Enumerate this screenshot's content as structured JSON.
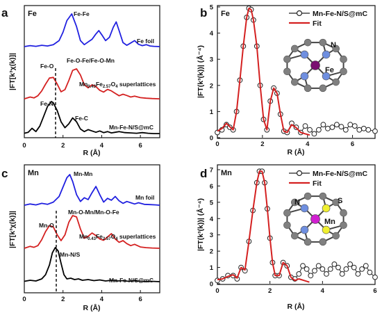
{
  "chart_data": [
    {
      "type": "line",
      "panel": "a",
      "element": "Fe",
      "xlabel": "R (Å)",
      "ylabel": "|FT[k³χ(k)]|",
      "xlim": [
        0,
        7
      ],
      "xticks": [
        "0",
        "2",
        "4",
        "6"
      ],
      "series": [
        {
          "name": "Fe foil",
          "color": "#2020e0",
          "x": [
            0,
            0.3,
            0.6,
            0.9,
            1.2,
            1.5,
            1.8,
            2.0,
            2.2,
            2.45,
            2.7,
            2.9,
            3.1,
            3.3,
            3.5,
            3.7,
            3.85,
            4.0,
            4.2,
            4.4,
            4.6,
            4.75,
            4.9,
            5.1,
            5.3,
            5.5,
            5.7,
            5.9,
            6.1,
            6.3,
            6.5,
            6.7,
            7.0
          ],
          "y": [
            0.02,
            0.05,
            0.03,
            0.06,
            0.04,
            0.08,
            0.2,
            0.45,
            0.8,
            1.0,
            0.62,
            0.2,
            0.08,
            0.16,
            0.24,
            0.4,
            0.5,
            0.38,
            0.2,
            0.3,
            0.6,
            0.76,
            0.5,
            0.14,
            0.06,
            0.13,
            0.2,
            0.09,
            0.05,
            0.08,
            0.04,
            0.03,
            0.02
          ]
        },
        {
          "name": "Mn0.43Fe2.57O4 superlattices",
          "color": "#d42020",
          "x": [
            0,
            0.3,
            0.5,
            0.7,
            0.9,
            1.1,
            1.3,
            1.5,
            1.7,
            1.9,
            2.1,
            2.3,
            2.5,
            2.7,
            2.9,
            3.1,
            3.3,
            3.5,
            3.7,
            3.9,
            4.1,
            4.3,
            4.5,
            4.7,
            4.9,
            5.1,
            5.3,
            5.5,
            5.7,
            6.0,
            6.3,
            6.6,
            7.0
          ],
          "y": [
            0.02,
            0.08,
            0.05,
            0.12,
            0.28,
            0.5,
            0.7,
            0.72,
            0.5,
            0.25,
            0.32,
            0.62,
            0.95,
            1.0,
            0.8,
            0.48,
            0.38,
            0.48,
            0.42,
            0.3,
            0.24,
            0.33,
            0.28,
            0.2,
            0.12,
            0.17,
            0.13,
            0.08,
            0.11,
            0.06,
            0.04,
            0.03,
            0.02
          ]
        },
        {
          "name": "Mn-Fe-N/S@mC",
          "color": "#000000",
          "x": [
            0,
            0.2,
            0.4,
            0.6,
            0.8,
            1.0,
            1.2,
            1.4,
            1.5,
            1.7,
            1.9,
            2.1,
            2.3,
            2.5,
            2.7,
            2.9,
            3.1,
            3.3,
            3.5,
            3.7,
            3.9,
            4.1,
            4.3,
            4.5,
            4.7,
            4.9,
            5.2,
            5.5,
            5.8,
            6.1,
            6.4,
            6.7,
            7.0
          ],
          "y": [
            0.03,
            0.06,
            0.18,
            0.08,
            0.25,
            0.55,
            0.85,
            1.0,
            0.96,
            0.72,
            0.38,
            0.2,
            0.32,
            0.5,
            0.38,
            0.16,
            0.08,
            0.14,
            0.1,
            0.06,
            0.1,
            0.05,
            0.08,
            0.04,
            0.06,
            0.08,
            0.05,
            0.04,
            0.03,
            0.05,
            0.03,
            0.02,
            0.02
          ]
        }
      ],
      "annotations": [
        "Fe-Fe",
        "Fe-O",
        "Fe-O-Fe/Fe-O-Mn",
        "Fe-N",
        "Fe-C"
      ]
    },
    {
      "type": "line",
      "panel": "b",
      "element": "Fe",
      "xlabel": "R (Å)",
      "ylabel": "|FT(k³(k))| (Å⁻⁴)",
      "xlim": [
        0,
        7
      ],
      "ylim": [
        0,
        5
      ],
      "xticks": [
        "0",
        "2",
        "4",
        "6"
      ],
      "yticks": [
        "0",
        "1",
        "2",
        "3",
        "4",
        "5"
      ],
      "legend": "top-right",
      "series": [
        {
          "name": "Mn-Fe-N/S@mC",
          "style": "open-circles",
          "color": "#222222",
          "x": [
            0,
            0.2,
            0.4,
            0.55,
            0.7,
            0.85,
            1.0,
            1.15,
            1.3,
            1.4,
            1.5,
            1.6,
            1.75,
            1.9,
            2.05,
            2.2,
            2.35,
            2.5,
            2.65,
            2.8,
            2.95,
            3.1,
            3.3,
            3.5,
            3.7,
            3.9,
            4.1,
            4.3,
            4.5,
            4.7,
            4.9,
            5.1,
            5.3,
            5.5,
            5.7,
            5.9,
            6.1,
            6.3,
            6.5,
            6.7,
            7.0
          ],
          "y": [
            0.2,
            0.3,
            0.5,
            0.4,
            0.3,
            1.0,
            2.2,
            3.5,
            4.6,
            4.95,
            4.9,
            4.5,
            3.5,
            2.0,
            0.7,
            0.3,
            1.4,
            1.9,
            1.7,
            0.9,
            0.25,
            0.2,
            0.55,
            0.4,
            0.2,
            0.45,
            0.3,
            0.15,
            0.3,
            0.5,
            0.35,
            0.4,
            0.5,
            0.42,
            0.3,
            0.5,
            0.45,
            0.3,
            0.35,
            0.3,
            0.25
          ]
        },
        {
          "name": "Fit",
          "style": "line",
          "color": "#d42020",
          "x": [
            0,
            0.2,
            0.4,
            0.55,
            0.7,
            0.85,
            1.0,
            1.15,
            1.3,
            1.4,
            1.5,
            1.6,
            1.75,
            1.9,
            2.05,
            2.2,
            2.35,
            2.5,
            2.65,
            2.8,
            2.95,
            3.1,
            3.3,
            3.5,
            3.7,
            3.9,
            4.1
          ],
          "y": [
            0.25,
            0.35,
            0.55,
            0.42,
            0.3,
            1.0,
            2.2,
            3.5,
            4.6,
            4.95,
            4.9,
            4.5,
            3.5,
            2.0,
            0.7,
            0.3,
            1.4,
            1.9,
            1.7,
            0.9,
            0.25,
            0.2,
            0.5,
            0.38,
            0.2,
            0.15,
            0.1
          ]
        }
      ],
      "inset_labels": [
        "N",
        "Fe"
      ]
    },
    {
      "type": "line",
      "panel": "c",
      "element": "Mn",
      "xlabel": "R (Å)",
      "ylabel": "|FT[k³χ(k)]|",
      "xlim": [
        0,
        7
      ],
      "xticks": [
        "0",
        "2",
        "4",
        "6"
      ],
      "series": [
        {
          "name": "Mn foil",
          "color": "#2020e0",
          "x": [
            0,
            0.3,
            0.6,
            0.9,
            1.2,
            1.5,
            1.8,
            2.0,
            2.2,
            2.35,
            2.5,
            2.7,
            2.9,
            3.1,
            3.3,
            3.5,
            3.7,
            3.9,
            4.1,
            4.3,
            4.5,
            4.7,
            4.9,
            5.1,
            5.3,
            5.5,
            5.7,
            5.9,
            6.2,
            6.5,
            6.8,
            7.0
          ],
          "y": [
            0.02,
            0.06,
            0.03,
            0.08,
            0.05,
            0.12,
            0.3,
            0.6,
            0.9,
            1.0,
            0.78,
            0.36,
            0.14,
            0.26,
            0.2,
            0.42,
            0.62,
            0.36,
            0.12,
            0.24,
            0.18,
            0.3,
            0.16,
            0.08,
            0.14,
            0.1,
            0.06,
            0.1,
            0.05,
            0.04,
            0.03,
            0.02
          ]
        },
        {
          "name": "Mn0.43Fe2.57O4 superlattices",
          "color": "#d42020",
          "x": [
            0,
            0.3,
            0.5,
            0.7,
            0.9,
            1.1,
            1.3,
            1.5,
            1.7,
            1.9,
            2.1,
            2.3,
            2.5,
            2.7,
            2.9,
            3.1,
            3.3,
            3.5,
            3.7,
            3.9,
            4.1,
            4.3,
            4.5,
            4.7,
            4.9,
            5.1,
            5.3,
            5.5,
            5.7,
            6.0,
            6.3,
            6.6,
            7.0
          ],
          "y": [
            0.02,
            0.08,
            0.05,
            0.1,
            0.28,
            0.52,
            0.7,
            0.66,
            0.42,
            0.25,
            0.42,
            0.8,
            1.0,
            0.96,
            0.6,
            0.32,
            0.38,
            0.48,
            0.4,
            0.3,
            0.26,
            0.36,
            0.46,
            0.3,
            0.2,
            0.25,
            0.16,
            0.1,
            0.14,
            0.06,
            0.04,
            0.03,
            0.02
          ]
        },
        {
          "name": "Mn-Fe-N/S@mC",
          "color": "#000000",
          "x": [
            0,
            0.3,
            0.6,
            0.9,
            1.1,
            1.3,
            1.45,
            1.6,
            1.75,
            1.9,
            2.05,
            2.2,
            2.4,
            2.6,
            2.8,
            3.0,
            3.3,
            3.6,
            3.9,
            4.2,
            4.5,
            4.8,
            5.1,
            5.4,
            5.7,
            6.0,
            6.3,
            6.6,
            7.0
          ],
          "y": [
            0.03,
            0.06,
            0.04,
            0.1,
            0.22,
            0.5,
            0.85,
            1.0,
            0.9,
            0.55,
            0.22,
            0.1,
            0.12,
            0.08,
            0.1,
            0.06,
            0.08,
            0.05,
            0.07,
            0.04,
            0.06,
            0.04,
            0.05,
            0.03,
            0.05,
            0.03,
            0.02,
            0.03,
            0.02
          ]
        }
      ],
      "annotations": [
        "Mn-Mn",
        "Mn-O-Mn/Mn-O-Fe",
        "Mn-O",
        "Mn-N/S"
      ]
    },
    {
      "type": "line",
      "panel": "d",
      "element": "Mn",
      "xlabel": "R (Å)",
      "ylabel": "|FT(k³(k))| (Å⁻⁴)",
      "xlim": [
        0,
        6
      ],
      "ylim": [
        0,
        7
      ],
      "xticks": [
        "0",
        "2",
        "4",
        "6"
      ],
      "yticks": [
        "0",
        "1",
        "2",
        "3",
        "4",
        "5",
        "6",
        "7"
      ],
      "legend": "top-right",
      "series": [
        {
          "name": "Mn-Fe-N/S@mC",
          "style": "open-circles",
          "color": "#222222",
          "x": [
            0,
            0.2,
            0.4,
            0.6,
            0.75,
            0.9,
            1.05,
            1.2,
            1.35,
            1.5,
            1.6,
            1.7,
            1.8,
            1.9,
            2.0,
            2.1,
            2.2,
            2.35,
            2.5,
            2.65,
            2.8,
            2.95,
            3.1,
            3.25,
            3.4,
            3.55,
            3.7,
            3.85,
            4.0,
            4.15,
            4.3,
            4.45,
            4.6,
            4.75,
            4.9,
            5.05,
            5.2,
            5.35,
            5.5,
            5.65,
            5.8,
            6.0
          ],
          "y": [
            0.2,
            0.3,
            0.5,
            0.5,
            0.3,
            1.0,
            0.8,
            2.6,
            4.5,
            6.2,
            6.9,
            6.9,
            6.2,
            4.6,
            2.8,
            1.3,
            0.5,
            0.5,
            1.3,
            1.1,
            0.4,
            0.3,
            0.6,
            1.1,
            0.9,
            0.5,
            0.8,
            1.1,
            0.9,
            0.6,
            0.9,
            1.2,
            1.0,
            0.6,
            0.9,
            1.2,
            1.0,
            0.6,
            0.9,
            1.1,
            0.7,
            0.4
          ]
        },
        {
          "name": "Fit",
          "style": "line",
          "color": "#d42020",
          "x": [
            0,
            0.2,
            0.4,
            0.6,
            0.75,
            0.9,
            1.05,
            1.2,
            1.35,
            1.5,
            1.6,
            1.7,
            1.8,
            1.9,
            2.0,
            2.1,
            2.2,
            2.35,
            2.5,
            2.65,
            2.8,
            2.95,
            3.1,
            3.3,
            3.5
          ],
          "y": [
            0.25,
            0.3,
            0.45,
            0.55,
            0.35,
            1.0,
            0.85,
            2.6,
            4.5,
            6.2,
            6.9,
            6.9,
            6.2,
            4.6,
            2.8,
            1.3,
            0.5,
            0.5,
            1.3,
            1.1,
            0.4,
            0.2,
            0.3,
            0.2,
            0.1
          ]
        }
      ],
      "inset_labels": [
        "N",
        "S",
        "Mn"
      ]
    }
  ],
  "panels": {
    "a": {
      "label": "a",
      "element": "Fe",
      "xlabel": "R (Å)",
      "ylabel": "|FT[k³χ(k)]|",
      "xticks": [
        "0",
        "2",
        "4",
        "6"
      ],
      "ann": {
        "fefe": "Fe-Fe",
        "feo": "Fe-O",
        "feofe": "Fe-O-Fe/Fe-O-Mn",
        "fen": "Fe-N",
        "fec": "Fe-C"
      },
      "curve_labels": {
        "foil": "Fe foil",
        "super_main": "Mn",
        "super_sub1": "0.43",
        "super_mid": "Fe",
        "super_sub2": "2.57",
        "super_mid2": "O",
        "super_sub3": "4",
        "super_tail": " superlattices",
        "sample": "Mn-Fe-N/S@mC"
      }
    },
    "b": {
      "label": "b",
      "element": "Fe",
      "xlabel": "R (Å)",
      "ylabel": "|FT(k³(k))| (Å⁻⁴)",
      "xticks": [
        "0",
        "2",
        "4",
        "6"
      ],
      "yticks": [
        "0",
        "1",
        "2",
        "3",
        "4",
        "5"
      ],
      "legend": {
        "sample": "Mn-Fe-N/S@mC",
        "fit": "Fit"
      },
      "inset": {
        "n": "N",
        "metal": "Fe"
      }
    },
    "c": {
      "label": "c",
      "element": "Mn",
      "xlabel": "R (Å)",
      "ylabel": "|FT[k³χ(k)]|",
      "xticks": [
        "0",
        "2",
        "4",
        "6"
      ],
      "ann": {
        "mnmn": "Mn-Mn",
        "mnomn": "Mn-O-Mn/Mn-O-Fe",
        "mno": "Mn-O",
        "mnns": "Mn-N/S"
      },
      "curve_labels": {
        "foil": "Mn foil",
        "super_main": "Mn",
        "super_sub1": "0.43",
        "super_mid": "Fe",
        "super_sub2": "2.57",
        "super_mid2": "O",
        "super_sub3": "4",
        "super_tail": " superlattices",
        "sample": "Mn-Fe-N/S@mC"
      }
    },
    "d": {
      "label": "d",
      "element": "Mn",
      "xlabel": "R (Å)",
      "ylabel": "|FT(k³(k))| (Å⁻⁴)",
      "xticks": [
        "0",
        "2",
        "4",
        "6"
      ],
      "yticks": [
        "0",
        "1",
        "2",
        "3",
        "4",
        "5",
        "6",
        "7"
      ],
      "legend": {
        "sample": "Mn-Fe-N/S@mC",
        "fit": "Fit"
      },
      "inset": {
        "n": "N",
        "s": "S",
        "metal": "Mn"
      }
    }
  },
  "colors": {
    "foil": "#2020e0",
    "super": "#d42020",
    "sample": "#000000",
    "fit": "#d42020",
    "carbon": "#808080",
    "nitrogen": "#6f8fe0",
    "sulfur": "#f0f030",
    "iron": "#7a1070",
    "manganese": "#d020d0"
  }
}
